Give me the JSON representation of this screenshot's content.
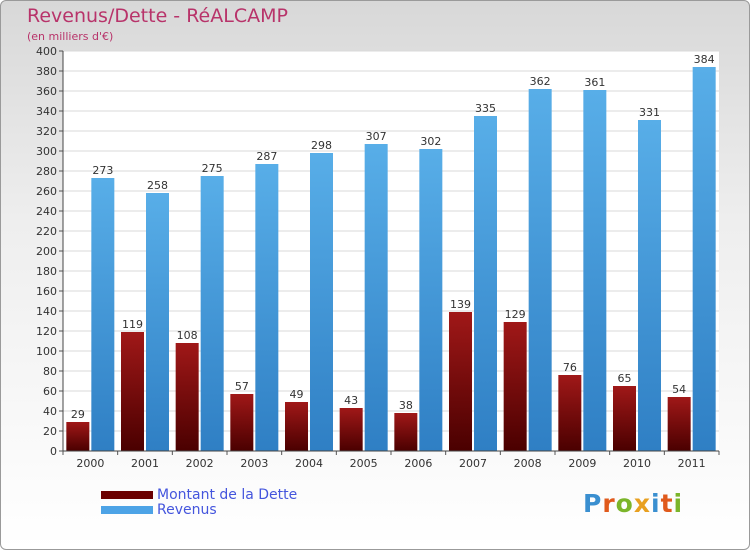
{
  "header": {
    "title": "Revenus/Dette - RéALCAMP",
    "subtitle": "(en milliers d'€)"
  },
  "chart_data": {
    "type": "bar",
    "categories": [
      "2000",
      "2001",
      "2002",
      "2003",
      "2004",
      "2005",
      "2006",
      "2007",
      "2008",
      "2009",
      "2010",
      "2011"
    ],
    "series": [
      {
        "name": "Montant de la Dette",
        "color": "#7a0a0a",
        "values": [
          29,
          119,
          108,
          57,
          49,
          43,
          38,
          139,
          129,
          76,
          65,
          54
        ]
      },
      {
        "name": "Revenus",
        "color": "#4da3e6",
        "values": [
          273,
          258,
          275,
          287,
          298,
          307,
          302,
          335,
          362,
          361,
          331,
          384
        ]
      }
    ],
    "yticks": [
      0,
      20,
      40,
      60,
      80,
      100,
      120,
      140,
      160,
      180,
      200,
      220,
      240,
      260,
      280,
      300,
      320,
      340,
      360,
      380,
      400
    ],
    "ylim": [
      0,
      400
    ],
    "grid": true,
    "legend_position": "bottom-left"
  },
  "legend": {
    "items": [
      {
        "label": "Montant de la Dette",
        "color": "#6b0000"
      },
      {
        "label": "Revenus",
        "color": "#4da3e6"
      }
    ]
  },
  "logo": {
    "letters": [
      "P",
      "r",
      "o",
      "x",
      "i",
      "t",
      "i"
    ],
    "colors": [
      "#3a8fd0",
      "#e05a1c",
      "#7bb52a",
      "#e8a020",
      "#3a8fd0",
      "#e05a1c",
      "#7bb52a"
    ]
  }
}
